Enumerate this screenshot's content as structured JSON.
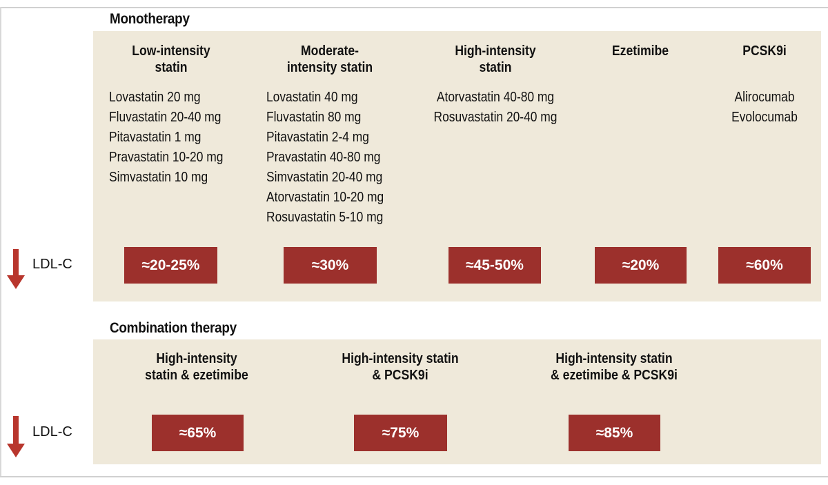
{
  "monotherapy": {
    "title": "Monotherapy",
    "columns": [
      {
        "heading_lines": [
          "Low-intensity",
          "statin"
        ],
        "drugs": [
          "Lovastatin 20 mg",
          "Fluvastatin 20-40 mg",
          "Pitavastatin 1 mg",
          "Pravastatin 10-20 mg",
          "Simvastatin 10 mg"
        ],
        "reduction": "≈20-25%"
      },
      {
        "heading_lines": [
          "Moderate-",
          "intensity statin"
        ],
        "drugs": [
          "Lovastatin 40 mg",
          "Fluvastatin 80 mg",
          "Pitavastatin 2-4 mg",
          "Pravastatin 40-80 mg",
          "Simvastatin 20-40 mg",
          "Atorvastatin 10-20 mg",
          "Rosuvastatin 5-10 mg"
        ],
        "reduction": "≈30%"
      },
      {
        "heading_lines": [
          "High-intensity",
          "statin"
        ],
        "drugs": [
          "Atorvastatin 40-80 mg",
          "Rosuvastatin 20-40 mg"
        ],
        "reduction": "≈45-50%"
      },
      {
        "heading_lines": [
          "Ezetimibe"
        ],
        "drugs": [],
        "reduction": "≈20%"
      },
      {
        "heading_lines": [
          "PCSK9i"
        ],
        "drugs": [
          "Alirocumab",
          "Evolocumab"
        ],
        "reduction": "≈60%"
      }
    ],
    "ldl_label": "LDL-C"
  },
  "combination": {
    "title": "Combination therapy",
    "columns": [
      {
        "heading_lines": [
          "High-intensity",
          "statin & ezetimibe"
        ],
        "reduction": "≈65%"
      },
      {
        "heading_lines": [
          "High-intensity statin",
          "& PCSK9i"
        ],
        "reduction": "≈75%"
      },
      {
        "heading_lines": [
          "High-intensity statin",
          "& ezetimibe & PCSK9i"
        ],
        "reduction": "≈85%"
      }
    ],
    "ldl_label": "LDL-C"
  },
  "colors": {
    "panel": "#efe9da",
    "badge": "#9c302c",
    "arrow": "#b8362d"
  }
}
